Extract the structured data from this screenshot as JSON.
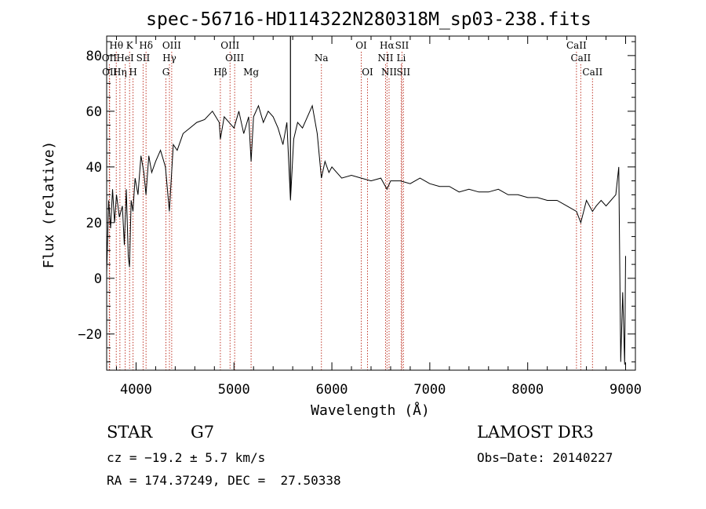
{
  "chart_data": {
    "type": "line",
    "title": "spec-56716-HD114322N280318M_sp03-238.fits",
    "xlabel": "Wavelength (Å)",
    "ylabel": "Flux (relative)",
    "xlim": [
      3700,
      9100
    ],
    "ylim": [
      -33,
      87
    ],
    "x_ticks": [
      4000,
      5000,
      6000,
      7000,
      8000,
      9000
    ],
    "y_ticks": [
      -20,
      0,
      20,
      40,
      60,
      80
    ],
    "grid": false,
    "line_color": "#000000",
    "marker_color": "#c0392b",
    "spectrum": {
      "x": [
        3700,
        3720,
        3740,
        3760,
        3780,
        3800,
        3830,
        3860,
        3880,
        3900,
        3920,
        3933,
        3950,
        3968,
        3990,
        4020,
        4050,
        4080,
        4101,
        4130,
        4160,
        4200,
        4250,
        4300,
        4340,
        4380,
        4420,
        4480,
        4550,
        4620,
        4700,
        4780,
        4850,
        4861,
        4900,
        4950,
        5000,
        5050,
        5100,
        5150,
        5175,
        5200,
        5250,
        5300,
        5350,
        5400,
        5450,
        5500,
        5540,
        5577,
        5610,
        5650,
        5700,
        5750,
        5800,
        5850,
        5893,
        5930,
        5970,
        6000,
        6050,
        6100,
        6200,
        6300,
        6400,
        6500,
        6563,
        6600,
        6700,
        6800,
        6900,
        7000,
        7100,
        7200,
        7300,
        7400,
        7500,
        7600,
        7700,
        7800,
        7900,
        8000,
        8100,
        8200,
        8300,
        8400,
        8498,
        8542,
        8600,
        8662,
        8700,
        8750,
        8800,
        8850,
        8900,
        8930,
        8950,
        8970,
        8990,
        9000
      ],
      "y": [
        2,
        28,
        18,
        32,
        20,
        30,
        22,
        26,
        12,
        32,
        8,
        4,
        28,
        24,
        36,
        30,
        44,
        38,
        30,
        44,
        38,
        42,
        46,
        40,
        24,
        48,
        46,
        52,
        54,
        56,
        57,
        60,
        56,
        50,
        58,
        56,
        54,
        60,
        52,
        58,
        42,
        58,
        62,
        56,
        60,
        58,
        54,
        48,
        56,
        28,
        50,
        56,
        54,
        58,
        62,
        52,
        36,
        42,
        38,
        40,
        38,
        36,
        37,
        36,
        35,
        36,
        32,
        35,
        35,
        34,
        36,
        34,
        33,
        33,
        31,
        32,
        31,
        31,
        32,
        30,
        30,
        29,
        29,
        28,
        28,
        26,
        24,
        20,
        28,
        24,
        26,
        28,
        26,
        28,
        30,
        40,
        -30,
        -5,
        -31,
        8
      ]
    },
    "lines_top": [
      {
        "label": "Hθ",
        "x": 3798
      },
      {
        "label": "K",
        "x": 3934
      },
      {
        "label": "Hδ",
        "x": 4102
      },
      {
        "label": "OIII",
        "x": 4364
      },
      {
        "label": "OIII",
        "x": 4960
      },
      {
        "label": "OI",
        "x": 6300
      },
      {
        "label": "Hα",
        "x": 6563
      },
      {
        "label": "SII",
        "x": 6716
      },
      {
        "label": "CaII",
        "x": 8498
      }
    ],
    "lines_mid": [
      {
        "label": "OII",
        "x": 3727
      },
      {
        "label": "HeI",
        "x": 3889
      },
      {
        "label": "SII",
        "x": 4072
      },
      {
        "label": "Hγ",
        "x": 4341
      },
      {
        "label": "OIII",
        "x": 5007
      },
      {
        "label": "Na",
        "x": 5893
      },
      {
        "label": "NII",
        "x": 6548
      },
      {
        "label": "Li",
        "x": 6708
      },
      {
        "label": "CaII",
        "x": 8542
      }
    ],
    "lines_low": [
      {
        "label": "OII",
        "x": 3730
      },
      {
        "label": "Hη",
        "x": 3835
      },
      {
        "label": "H",
        "x": 3969
      },
      {
        "label": "G",
        "x": 4305
      },
      {
        "label": "Hβ",
        "x": 4861
      },
      {
        "label": "Mg",
        "x": 5175
      },
      {
        "label": "OI",
        "x": 6364
      },
      {
        "label": "NII",
        "x": 6584
      },
      {
        "label": "SII",
        "x": 6731
      },
      {
        "label": "CaII",
        "x": 8662
      }
    ],
    "sky_line": 5577
  },
  "info": {
    "object_class": "STAR",
    "subclass": "G7",
    "survey": "LAMOST DR3",
    "cz": "cz = −19.2 ± 5.7 km/s",
    "obs_date": "Obs−Date: 20140227",
    "coords": "RA = 174.37249, DEC =  27.50338"
  }
}
